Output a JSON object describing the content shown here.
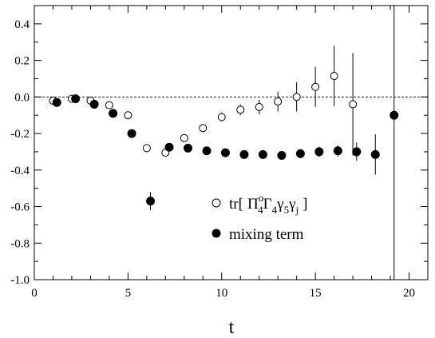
{
  "chart_data": {
    "type": "scatter",
    "title": "",
    "xlabel": "t",
    "ylabel": "",
    "xlim": [
      0,
      21
    ],
    "ylim": [
      -1.0,
      0.5
    ],
    "grid": false,
    "legend_position": "lower-right",
    "reference_line": {
      "y": 0.0,
      "style": "dashed"
    },
    "x_ticks": [
      0,
      5,
      10,
      15,
      20
    ],
    "x_tick_labels": [
      "0",
      "5",
      "10",
      "15",
      "20"
    ],
    "y_ticks": [
      -1.0,
      -0.8,
      -0.6,
      -0.4,
      -0.2,
      0.0,
      0.2,
      0.4
    ],
    "y_tick_labels": [
      "-1.0",
      "-0.8",
      "-0.6",
      "-0.4",
      "-0.2",
      "0.0",
      "0.2",
      "0.4"
    ],
    "series": [
      {
        "name": "tr[ Π°4Γ4γ5γj ]",
        "legend_parts": {
          "prefix": "tr[",
          "pi": "Π",
          "pi_sup": "o",
          "pi_sub": "4",
          "gamma": "Γ",
          "gamma_sub": "4",
          "g1": "γ",
          "g1_sub": "5",
          "g2": "γ",
          "g2_sub": "j",
          "suffix": "]"
        },
        "marker": "open-circle",
        "x": [
          1,
          2,
          3,
          4,
          5,
          6,
          7,
          8,
          9,
          10,
          11,
          12,
          13,
          14,
          15,
          16,
          17
        ],
        "y": [
          -0.02,
          -0.01,
          -0.02,
          -0.045,
          -0.1,
          -0.28,
          -0.305,
          -0.225,
          -0.17,
          -0.11,
          -0.07,
          -0.055,
          -0.025,
          0.0,
          0.055,
          0.115,
          -0.04
        ],
        "err": [
          0.005,
          0.005,
          0.005,
          0.008,
          0.01,
          0.015,
          0.02,
          0.02,
          0.02,
          0.025,
          0.03,
          0.04,
          0.055,
          0.08,
          0.11,
          0.165,
          0.28
        ]
      },
      {
        "name": "mixing term",
        "marker": "filled-circle",
        "x": [
          1.2,
          2.2,
          3.2,
          4.2,
          5.2,
          6.2,
          7.2,
          8.2,
          9.2,
          10.2,
          11.2,
          12.2,
          13.2,
          14.2,
          15.2,
          16.2,
          17.2,
          18.2,
          19.2
        ],
        "y": [
          -0.03,
          -0.01,
          -0.04,
          -0.09,
          -0.2,
          -0.57,
          -0.275,
          -0.28,
          -0.295,
          -0.305,
          -0.315,
          -0.315,
          -0.32,
          -0.31,
          -0.3,
          -0.295,
          -0.3,
          -0.315,
          -0.1
        ],
        "err": [
          0.005,
          0.005,
          0.005,
          0.008,
          0.01,
          0.05,
          0.01,
          0.01,
          0.012,
          0.015,
          0.018,
          0.02,
          0.022,
          0.025,
          0.028,
          0.03,
          0.05,
          0.11,
          1.2
        ]
      }
    ]
  }
}
